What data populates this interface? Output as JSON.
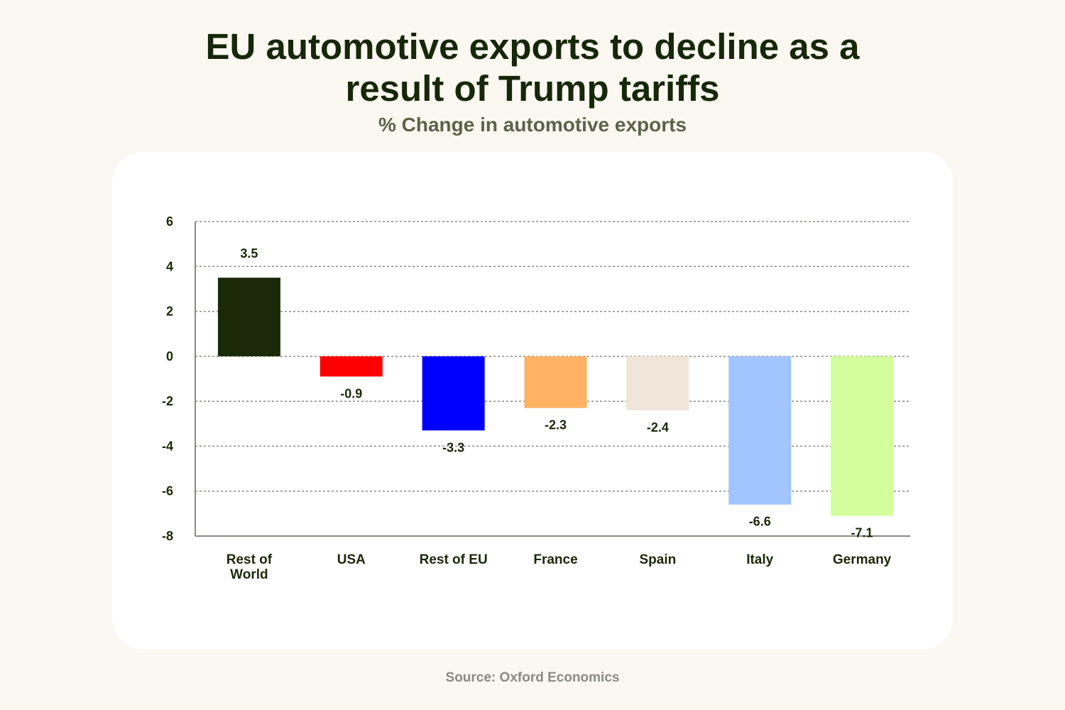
{
  "page": {
    "title_lines": [
      "EU automotive exports to decline as a",
      "result of Trump tariffs"
    ],
    "subtitle": "% Change in automotive exports",
    "source": "Source: Oxford Economics"
  },
  "chart_data": {
    "type": "bar",
    "title": "EU automotive exports to decline as a result of Trump tariffs",
    "ylabel": "% Change in automotive exports",
    "xlabel": "",
    "ylim": [
      -8,
      6
    ],
    "yticks": [
      6,
      4,
      2,
      0,
      -2,
      -4,
      -6,
      -8
    ],
    "grid": true,
    "categories": [
      [
        "Rest of",
        "World"
      ],
      [
        "USA"
      ],
      [
        "Rest of EU"
      ],
      [
        "France"
      ],
      [
        "Spain"
      ],
      [
        "Italy"
      ],
      [
        "Germany"
      ]
    ],
    "values": [
      3.5,
      -0.9,
      -3.3,
      -2.3,
      -2.4,
      -6.6,
      -7.1
    ],
    "value_labels": [
      "3.5",
      "-0.9",
      "-3.3",
      "-2.3",
      "-2.4",
      "-6.6",
      "-7.1"
    ],
    "colors": [
      "#1a2908",
      "#ff0000",
      "#0000ff",
      "#ffb263",
      "#efe5d8",
      "#a2c5ff",
      "#d2ff9c"
    ]
  }
}
